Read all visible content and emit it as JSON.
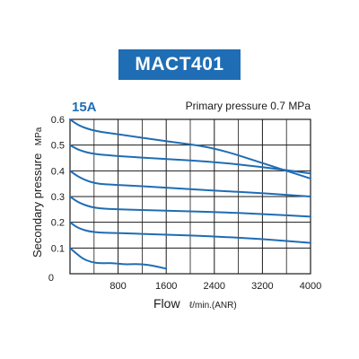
{
  "title": "MACT401",
  "chart_data": {
    "type": "line",
    "subtitle": "15A",
    "annotation": "Primary pressure 0.7 MPa",
    "ylabel": "Secondary pressure",
    "ylabel_unit": "MPa",
    "xlabel": "Flow",
    "xlabel_unit": "ℓ/min.(ANR)",
    "xlim": [
      0,
      4000
    ],
    "ylim": [
      0,
      0.6
    ],
    "x_ticks": [
      "0",
      "800",
      "1600",
      "2400",
      "3200",
      "4000"
    ],
    "x_tick_values": [
      0,
      800,
      1600,
      2400,
      3200,
      4000
    ],
    "y_ticks": [
      "0",
      "0.1",
      "0.2",
      "0.3",
      "0.4",
      "0.5",
      "0.6"
    ],
    "y_tick_values": [
      0,
      0.1,
      0.2,
      0.3,
      0.4,
      0.5,
      0.6
    ],
    "grid": true,
    "line_color": "#1f6db4",
    "series": [
      {
        "x": [
          0,
          150,
          400,
          800,
          1600,
          2400,
          3200,
          4000
        ],
        "y": [
          0.6,
          0.575,
          0.555,
          0.542,
          0.515,
          0.49,
          0.43,
          0.37
        ]
      },
      {
        "x": [
          0,
          150,
          400,
          800,
          1600,
          2400,
          3200,
          4000
        ],
        "y": [
          0.5,
          0.48,
          0.465,
          0.457,
          0.446,
          0.435,
          0.415,
          0.39
        ]
      },
      {
        "x": [
          0,
          150,
          400,
          800,
          1600,
          2400,
          3200,
          4000
        ],
        "y": [
          0.4,
          0.375,
          0.35,
          0.345,
          0.335,
          0.323,
          0.313,
          0.3
        ]
      },
      {
        "x": [
          0,
          150,
          400,
          800,
          1600,
          2400,
          3200,
          4000
        ],
        "y": [
          0.3,
          0.275,
          0.255,
          0.25,
          0.245,
          0.24,
          0.232,
          0.222
        ]
      },
      {
        "x": [
          0,
          150,
          400,
          800,
          1600,
          2400,
          3200,
          4000
        ],
        "y": [
          0.2,
          0.175,
          0.16,
          0.158,
          0.152,
          0.145,
          0.135,
          0.12
        ]
      },
      {
        "x": [
          0,
          100,
          200,
          350,
          500,
          700,
          900,
          1100,
          1300,
          1600
        ],
        "y": [
          0.1,
          0.08,
          0.06,
          0.045,
          0.04,
          0.042,
          0.036,
          0.038,
          0.035,
          0.02
        ]
      }
    ]
  }
}
